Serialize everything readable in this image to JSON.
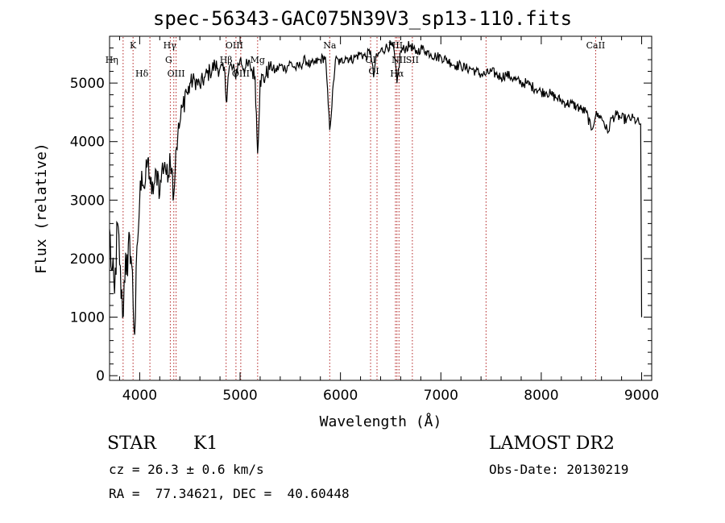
{
  "title": "spec-56343-GAC075N39V3_sp13-110.fits",
  "chart_data": {
    "type": "line",
    "xlabel": "Wavelength (Å)",
    "ylabel": "Flux (relative)",
    "xlim": [
      3700,
      9100
    ],
    "ylim": [
      -80,
      5800
    ],
    "xticks": [
      4000,
      5000,
      6000,
      7000,
      8000,
      9000
    ],
    "yticks": [
      0,
      1000,
      2000,
      3000,
      4000,
      5000
    ],
    "grid": false,
    "series": [
      {
        "x": [
          3700,
          3720,
          3750,
          3780,
          3800,
          3830,
          3860,
          3880,
          3900,
          3920,
          3950,
          3980,
          4000,
          4020,
          4050,
          4080,
          4100,
          4120,
          4150,
          4180,
          4200,
          4220,
          4250,
          4280,
          4300,
          4320,
          4340,
          4360,
          4380,
          4400,
          4430,
          4460,
          4480,
          4500,
          4550,
          4600,
          4650,
          4700,
          4750,
          4800,
          4850,
          4861,
          4880,
          4900,
          4950,
          5000,
          5050,
          5100,
          5150,
          5175,
          5200,
          5250,
          5300,
          5350,
          5400,
          5450,
          5500,
          5550,
          5600,
          5650,
          5700,
          5750,
          5800,
          5850,
          5893,
          5950,
          6000,
          6050,
          6100,
          6150,
          6200,
          6250,
          6300,
          6330,
          6350,
          6400,
          6450,
          6500,
          6530,
          6563,
          6600,
          6650,
          6700,
          6750,
          6800,
          6850,
          6900,
          6950,
          7000,
          7050,
          7100,
          7150,
          7200,
          7250,
          7300,
          7350,
          7400,
          7450,
          7500,
          7550,
          7600,
          7650,
          7700,
          7750,
          7800,
          7850,
          7900,
          7950,
          8000,
          8050,
          8100,
          8150,
          8200,
          8250,
          8300,
          8350,
          8400,
          8450,
          8498,
          8542,
          8580,
          8620,
          8662,
          8700,
          8750,
          8800,
          8850,
          8900,
          8950,
          8990,
          9000
        ],
        "y": [
          2500,
          1800,
          1400,
          2600,
          1900,
          1000,
          2100,
          1700,
          2400,
          1900,
          700,
          2300,
          3000,
          3500,
          3200,
          3700,
          3400,
          3100,
          3300,
          3500,
          3100,
          3500,
          3650,
          3300,
          3800,
          3550,
          3100,
          3850,
          4100,
          4300,
          4600,
          4900,
          4800,
          5000,
          5050,
          4950,
          5100,
          5200,
          5300,
          5250,
          5150,
          4700,
          5100,
          5300,
          5150,
          5400,
          5250,
          5300,
          5100,
          3800,
          5050,
          5100,
          5300,
          5200,
          5300,
          5250,
          5350,
          5250,
          5300,
          5400,
          5300,
          5350,
          5400,
          5450,
          4200,
          5400,
          5350,
          5450,
          5400,
          5450,
          5500,
          5450,
          5550,
          5100,
          5400,
          5550,
          5600,
          5650,
          5600,
          5000,
          5550,
          5600,
          5650,
          5500,
          5600,
          5550,
          5500,
          5450,
          5450,
          5400,
          5350,
          5300,
          5300,
          5250,
          5250,
          5200,
          5150,
          5150,
          5200,
          5150,
          5100,
          5150,
          5100,
          5050,
          5000,
          5000,
          4950,
          4900,
          4850,
          4850,
          4800,
          4750,
          4700,
          4650,
          4650,
          4600,
          4550,
          4500,
          4200,
          4450,
          4450,
          4350,
          4150,
          4400,
          4450,
          4400,
          4380,
          4400,
          4350,
          4300,
          1000
        ]
      }
    ],
    "lines": [
      {
        "label": "Hη",
        "x": 3835
      },
      {
        "label": "K",
        "x": 3934
      },
      {
        "label": "Hδ",
        "x": 4102
      },
      {
        "label": "Hγ",
        "x": 4340
      },
      {
        "label": "G",
        "x": 4305
      },
      {
        "label": "OIII",
        "x": 4363
      },
      {
        "label": "Hβ",
        "x": 4861
      },
      {
        "label": "OIII",
        "x": 4959
      },
      {
        "label": "OIII",
        "x": 5007
      },
      {
        "label": "Mg",
        "x": 5175
      },
      {
        "label": "Na",
        "x": 5893
      },
      {
        "label": "OI",
        "x": 6300
      },
      {
        "label": "OI",
        "x": 6364
      },
      {
        "label": "NII",
        "x": 6548
      },
      {
        "label": "Hα",
        "x": 6563
      },
      {
        "label": "NII",
        "x": 6583
      },
      {
        "label": "SII",
        "x": 6716
      },
      {
        "label": "",
        "x": 7450
      },
      {
        "label": "CaII",
        "x": 8542
      }
    ]
  },
  "info": {
    "object_class": "STAR",
    "subclass": "K1",
    "survey": "LAMOST DR2",
    "cz": "cz = 26.3 ± 0.6 km/s",
    "obs_date": "Obs-Date: 20130219",
    "radec": "RA =  77.34621, DEC =  40.60448"
  }
}
